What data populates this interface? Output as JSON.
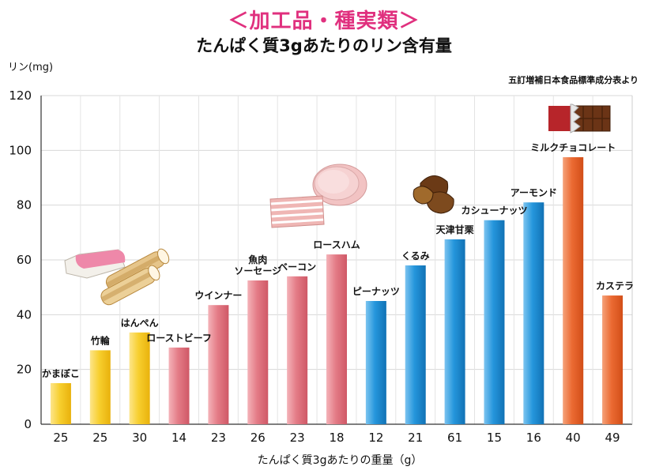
{
  "title": "＜加工品・種実類＞",
  "subtitle": "たんぱく質3gあたりのリン含有量",
  "source": "五訂増補日本食品標準成分表より",
  "colors": {
    "yellow": "#f5c518",
    "pink": "#e0727f",
    "blue": "#1d8fd6",
    "orange": "#e8602a"
  },
  "chart_data": {
    "type": "bar",
    "title": "たんぱく質3gあたりのリン含有量",
    "ylabel": "リン(mg)",
    "xlabel": "たんぱく質3gあたりの重量（g）",
    "ylim": [
      0,
      120
    ],
    "yticks": [
      0,
      20,
      40,
      60,
      80,
      100,
      120
    ],
    "grid": true,
    "categories": [
      "かまぼこ",
      "竹輪",
      "はんぺん",
      "ローストビーフ",
      "ウインナー",
      "魚肉ソーセージ",
      "ベーコン",
      "ロースハム",
      "ピーナッツ",
      "くるみ",
      "天津甘栗",
      "カシューナッツ",
      "アーモンド",
      "ミルクチョコレート",
      "カステラ"
    ],
    "label_lines": [
      [
        "かまぼこ"
      ],
      [
        "竹輪"
      ],
      [
        "はんぺん"
      ],
      [
        "ローストビーフ"
      ],
      [
        "ウインナー"
      ],
      [
        "魚肉",
        "ソーセージ"
      ],
      [
        "ベーコン"
      ],
      [
        "ロースハム"
      ],
      [
        "ピーナッツ"
      ],
      [
        "くるみ"
      ],
      [
        "天津甘栗"
      ],
      [
        "カシューナッツ"
      ],
      [
        "アーモンド"
      ],
      [
        "ミルクチョコレート"
      ],
      [
        "カステラ"
      ]
    ],
    "values": [
      15,
      27,
      33.5,
      28,
      43.5,
      52.5,
      54,
      62,
      45,
      58,
      67.5,
      74.5,
      81,
      97.5,
      47
    ],
    "weights_g": [
      "25",
      "25",
      "30",
      "14",
      "23",
      "26",
      "23",
      "18",
      "12",
      "21",
      "61",
      "15",
      "16",
      "40",
      "49"
    ],
    "groups": [
      "yellow",
      "yellow",
      "yellow",
      "pink",
      "pink",
      "pink",
      "pink",
      "pink",
      "blue",
      "blue",
      "blue",
      "blue",
      "blue",
      "orange",
      "orange"
    ]
  }
}
